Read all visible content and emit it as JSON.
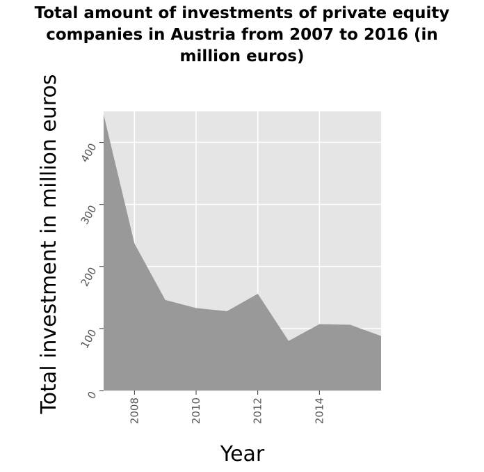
{
  "chart_data": {
    "type": "area",
    "title": "Total amount of investments of private equity\ncompanies in Austria from 2007 to 2016 (in\nmillion euros)",
    "xlabel": "Year",
    "ylabel": "Total investment in million euros",
    "x": [
      2007,
      2008,
      2009,
      2010,
      2011,
      2012,
      2013,
      2014,
      2015,
      2016
    ],
    "values": [
      445,
      237,
      146,
      133,
      128,
      156,
      80,
      107,
      106,
      88
    ],
    "xlim": [
      2007,
      2016
    ],
    "ylim": [
      0,
      450
    ],
    "xticks": [
      2008,
      2010,
      2012,
      2014
    ],
    "yticks": [
      0,
      100,
      200,
      300,
      400
    ],
    "grid": true,
    "fill_color": "#999999",
    "background_color": "#e5e5e5"
  }
}
